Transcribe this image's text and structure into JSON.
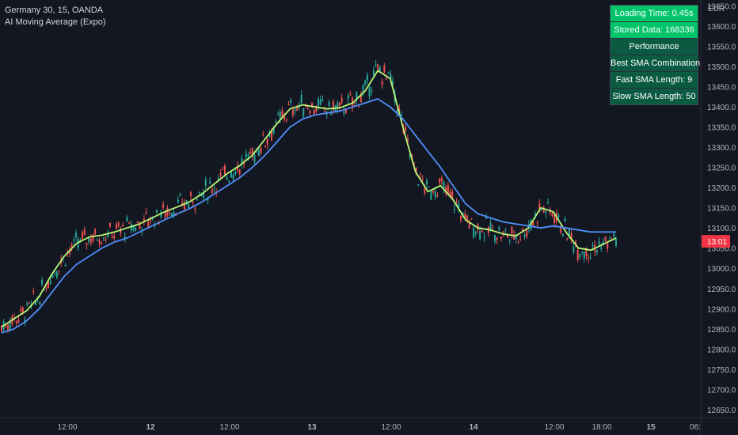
{
  "legend": {
    "symbol": "Germany 30, 15, OANDA",
    "indicator": "AI Moving Average (Expo)"
  },
  "currency": "EUR",
  "table": {
    "rows": [
      {
        "text": "Loading Time: 0.45s",
        "bg": "#00c46a"
      },
      {
        "text": "Stored Data: 168336",
        "bg": "#00c46a"
      },
      {
        "text": "Performance",
        "bg": "#0b5a42"
      },
      {
        "text": "Best SMA Combination",
        "bg": "#0b5a42"
      },
      {
        "text": "Fast SMA Length: 9",
        "bg": "#0b5a42"
      },
      {
        "text": "Slow SMA Length: 50",
        "bg": "#0b5a42"
      }
    ]
  },
  "price_tag": {
    "text": "13:01",
    "bg": "#f23645"
  },
  "colors": {
    "background": "#131722",
    "up_candle": "#26a69a",
    "down_candle": "#ef5350",
    "fast_line": "#b7f774",
    "slow_line": "#4f8ef7",
    "grid": "#1c2030",
    "axis_text": "#b2b5be"
  },
  "chart_data": {
    "type": "line",
    "instrument": "Germany 30",
    "timeframe": "15",
    "x_tick_labels": [
      "12:00",
      "12",
      "12:00",
      "13",
      "12:00",
      "14",
      "12:00",
      "18:00",
      "15",
      "06:"
    ],
    "y_tick_labels": [
      "13650.0",
      "13600.0",
      "13550.0",
      "13500.0",
      "13450.0",
      "13400.0",
      "13350.0",
      "13300.0",
      "13250.0",
      "13200.0",
      "13150.0",
      "13100.0",
      "13050.0",
      "13000.0",
      "12950.0",
      "12900.0",
      "12850.0",
      "12800.0",
      "12750.0",
      "12700.0",
      "12650.0"
    ],
    "ylim": [
      12630,
      13665
    ],
    "grid": false,
    "series": [
      {
        "name": "Fast SMA",
        "color": "#b7f774",
        "values": [
          12855,
          12875,
          12895,
          12930,
          12985,
          13030,
          13062,
          13078,
          13082,
          13090,
          13100,
          13110,
          13125,
          13140,
          13152,
          13165,
          13185,
          13210,
          13235,
          13255,
          13280,
          13320,
          13360,
          13395,
          13405,
          13400,
          13395,
          13398,
          13410,
          13440,
          13490,
          13470,
          13350,
          13240,
          13190,
          13205,
          13170,
          13120,
          13100,
          13095,
          13085,
          13080,
          13100,
          13150,
          13140,
          13090,
          13050,
          13045,
          13060,
          13075
        ]
      },
      {
        "name": "Slow SMA",
        "color": "#4f8ef7",
        "values": [
          12840,
          12850,
          12870,
          12900,
          12940,
          12980,
          13010,
          13030,
          13050,
          13065,
          13075,
          13090,
          13105,
          13120,
          13135,
          13148,
          13165,
          13185,
          13205,
          13225,
          13250,
          13280,
          13315,
          13350,
          13370,
          13380,
          13385,
          13390,
          13400,
          13410,
          13420,
          13400,
          13370,
          13330,
          13290,
          13250,
          13205,
          13160,
          13135,
          13125,
          13115,
          13110,
          13105,
          13100,
          13105,
          13100,
          13095,
          13090,
          13090,
          13090
        ]
      }
    ]
  }
}
